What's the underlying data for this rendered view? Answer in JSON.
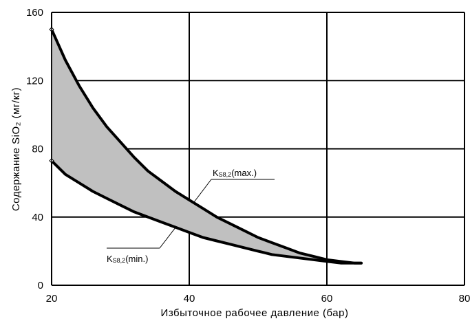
{
  "chart_data": {
    "type": "area",
    "xlabel": "Избыточное рабочее давление (бар)",
    "ylabel": "Содержание SiO₂ (мг/кг)",
    "xlim": [
      20,
      80
    ],
    "ylim": [
      0,
      160
    ],
    "xticks": [
      "20",
      "40",
      "60",
      "80"
    ],
    "yticks": [
      "0",
      "40",
      "80",
      "120",
      "160"
    ],
    "x_tick_values": [
      20,
      40,
      60,
      80
    ],
    "y_tick_values": [
      0,
      40,
      80,
      120,
      160
    ],
    "grid": true,
    "fill_color": "#c0c0c0",
    "line_color": "#000000",
    "series": [
      {
        "name": "KS8,2(max.)",
        "x": [
          20,
          22,
          24,
          26,
          28,
          30,
          32,
          34,
          36,
          38,
          40,
          42,
          44,
          46,
          48,
          50,
          52,
          54,
          56,
          58,
          60,
          62,
          64,
          65
        ],
        "y": [
          150,
          132,
          117,
          104,
          93,
          84,
          75,
          67,
          61,
          55,
          50,
          45,
          40,
          36,
          32,
          28,
          25,
          22,
          19,
          17,
          15,
          14,
          13,
          13
        ]
      },
      {
        "name": "KS8,2(min.)",
        "x": [
          20,
          22,
          24,
          26,
          28,
          30,
          32,
          34,
          36,
          38,
          40,
          42,
          44,
          46,
          48,
          50,
          52,
          54,
          56,
          58,
          60,
          62,
          64,
          65
        ],
        "y": [
          73,
          65,
          60,
          55,
          51,
          47,
          43,
          40,
          37,
          34,
          31,
          28,
          26,
          24,
          22,
          20,
          18,
          17,
          16,
          15,
          14,
          13,
          13,
          13
        ]
      }
    ],
    "annotations": [
      {
        "main": "K",
        "sub": "S8,2",
        "tail": "(max.)"
      },
      {
        "main": "K",
        "sub": "S8,2",
        "tail": "(min.)"
      }
    ]
  }
}
